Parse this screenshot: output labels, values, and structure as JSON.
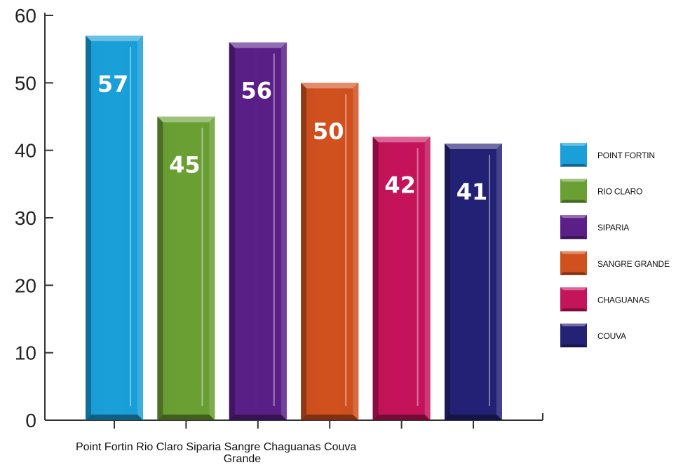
{
  "chart_data": {
    "type": "bar",
    "categories": [
      "Point Fortin",
      "Rio Claro",
      "Siparia",
      "Sangre Grande",
      "Chaguanas",
      "Couva"
    ],
    "values": [
      57,
      45,
      56,
      50,
      42,
      41
    ],
    "data_labels": [
      "57",
      "45",
      "56",
      "50",
      "42",
      "41"
    ],
    "axis_category_labels": [
      [
        "Point Fortin"
      ],
      [
        "Rio Claro"
      ],
      [
        "Siparia"
      ],
      [
        "Sangre",
        "Grande"
      ],
      [
        "Chaguanas"
      ],
      [
        "Couva"
      ]
    ],
    "legend": [
      "POINT FORTIN",
      "RIO CLARO",
      "SIPARIA",
      "SANGRE GRANDE",
      "CHAGUANAS",
      "COUVA"
    ],
    "legend_position": "right",
    "colors": [
      "#1a9fd9",
      "#6a9f34",
      "#5a2088",
      "#d0501e",
      "#c4145a",
      "#232275"
    ],
    "ylim": [
      0,
      60
    ],
    "yticks": [
      0,
      10,
      20,
      30,
      40,
      50,
      60
    ],
    "xlabel": "",
    "ylabel": "",
    "title": "",
    "grid": false
  }
}
